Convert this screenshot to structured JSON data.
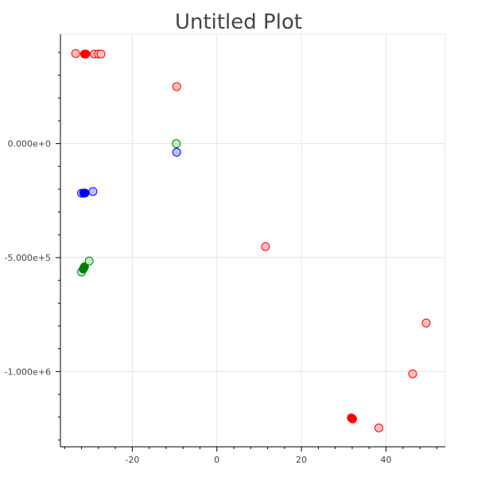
{
  "chart_data": {
    "type": "scatter",
    "title": "Untitled Plot",
    "xlabel": "",
    "ylabel": "",
    "xlim": [
      -37,
      54
    ],
    "ylim": [
      -1330000,
      480000
    ],
    "grid": true,
    "x_ticks": [
      {
        "value": -20,
        "label": "-20"
      },
      {
        "value": 0,
        "label": "0"
      },
      {
        "value": 20,
        "label": "20"
      },
      {
        "value": 40,
        "label": "40"
      }
    ],
    "x_minor_step": 4,
    "y_ticks": [
      {
        "value": 0,
        "label": "0.000e+0"
      },
      {
        "value": -500000,
        "label": "-5.000e+5"
      },
      {
        "value": -1000000,
        "label": "-1.000e+6"
      }
    ],
    "y_minor_step": 100000,
    "colors": {
      "red": "#ff0000",
      "green": "#008000",
      "blue": "#0000ff",
      "red_fill": "#ffc0c0",
      "green_fill": "#c0eec0",
      "blue_fill": "#c0c0ff"
    },
    "points": [
      {
        "x": -33.4,
        "y": 395000,
        "color": "red",
        "filled": false
      },
      {
        "x": -31.3,
        "y": 393000,
        "color": "red",
        "filled": true
      },
      {
        "x": -31.0,
        "y": 393000,
        "color": "red",
        "filled": true
      },
      {
        "x": -29.0,
        "y": 393000,
        "color": "red",
        "filled": false
      },
      {
        "x": -28.0,
        "y": 393000,
        "color": "red",
        "filled": false
      },
      {
        "x": -27.4,
        "y": 393000,
        "color": "red",
        "filled": false
      },
      {
        "x": -9.5,
        "y": 250000,
        "color": "red",
        "filled": false
      },
      {
        "x": -9.6,
        "y": 0,
        "color": "green",
        "filled": false
      },
      {
        "x": -9.5,
        "y": -38000,
        "color": "blue",
        "filled": false
      },
      {
        "x": -32.0,
        "y": -218000,
        "color": "blue",
        "filled": false
      },
      {
        "x": -31.5,
        "y": -217000,
        "color": "blue",
        "filled": true
      },
      {
        "x": -31.2,
        "y": -217000,
        "color": "blue",
        "filled": true
      },
      {
        "x": -29.3,
        "y": -210000,
        "color": "blue",
        "filled": false
      },
      {
        "x": -32.0,
        "y": -563000,
        "color": "green",
        "filled": false
      },
      {
        "x": -31.6,
        "y": -550000,
        "color": "green",
        "filled": true
      },
      {
        "x": -31.3,
        "y": -540000,
        "color": "green",
        "filled": true
      },
      {
        "x": -30.2,
        "y": -515000,
        "color": "green",
        "filled": false
      },
      {
        "x": 11.5,
        "y": -452000,
        "color": "red",
        "filled": false
      },
      {
        "x": 49.5,
        "y": -787000,
        "color": "red",
        "filled": false
      },
      {
        "x": 46.3,
        "y": -1010000,
        "color": "red",
        "filled": false
      },
      {
        "x": 31.8,
        "y": -1203000,
        "color": "red",
        "filled": true
      },
      {
        "x": 32.1,
        "y": -1208000,
        "color": "red",
        "filled": true
      },
      {
        "x": 38.3,
        "y": -1247000,
        "color": "red",
        "filled": false
      }
    ]
  }
}
